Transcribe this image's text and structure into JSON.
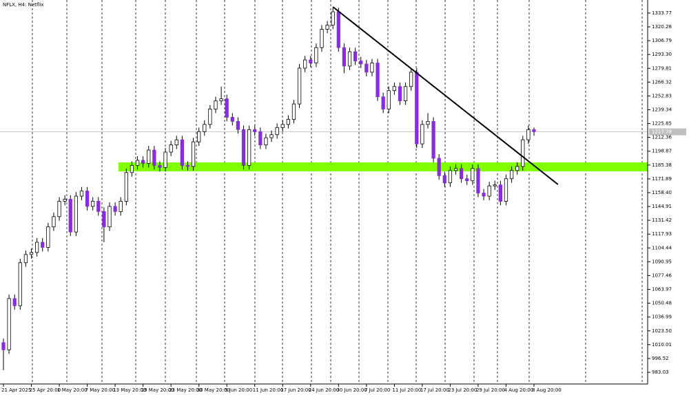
{
  "chart_data": {
    "type": "candlestick",
    "title": "NFLX, H4: Netflix",
    "categories": [
      "21 Apr 2025",
      null,
      null,
      null,
      null,
      "25 Apr 20:00",
      null,
      null,
      null,
      null,
      "1 May 20:00",
      null,
      null,
      null,
      null,
      "7 May 20:00",
      null,
      null,
      null,
      null,
      "13 May 20:00",
      null,
      null,
      null,
      null,
      "19 May 20:00",
      null,
      null,
      null,
      null,
      "23 May 20:00",
      null,
      null,
      null,
      null,
      "30 May 20:00",
      null,
      null,
      null,
      null,
      "5 Jun 20:00",
      null,
      null,
      null,
      null,
      "11 Jun 20:00",
      null,
      null,
      null,
      null,
      "17 Jun 20:00",
      null,
      null,
      null,
      null,
      "24 Jun 20:00",
      null,
      null,
      null,
      null,
      "30 Jun 20:00",
      null,
      null,
      null,
      null,
      "7 Jul 20:00",
      null,
      null,
      null,
      null,
      "11 Jul 20:00",
      null,
      null,
      null,
      null,
      "17 Jul 20:00",
      null,
      null,
      null,
      null,
      "23 Jul 20:00",
      null,
      null,
      null,
      null,
      "29 Jul 20:00",
      null,
      null,
      null,
      null,
      "4 Aug 20:00",
      null,
      null,
      null,
      null,
      "8 Aug 20:00"
    ],
    "open": [
      1012,
      1005,
      1055,
      1048,
      1090,
      1098,
      1100,
      1110,
      1105,
      1125,
      1135,
      1150,
      1152,
      1120,
      1155,
      1160,
      1145,
      1150,
      1140,
      1125,
      1145,
      1140,
      1150,
      1178,
      1185,
      1190,
      1187,
      1200,
      1185,
      1183,
      1198,
      1205,
      1210,
      1185,
      1184,
      1208,
      1218,
      1225,
      1240,
      1248,
      1250,
      1232,
      1228,
      1220,
      1185,
      1220,
      1218,
      1205,
      1212,
      1215,
      1222,
      1225,
      1230,
      1245,
      1280,
      1288,
      1285,
      1300,
      1318,
      1322,
      1335,
      1300,
      1282,
      1296,
      1287,
      1284,
      1276,
      1285,
      1252,
      1240,
      1258,
      1262,
      1248,
      1262,
      1276,
      1206,
      1225,
      1228,
      1192,
      1175,
      1168,
      1180,
      1182,
      1172,
      1170,
      1182,
      1158,
      1155,
      1165,
      1166,
      1150,
      1172,
      1180,
      1184,
      1210,
      1220
    ],
    "close": [
      1005,
      1055,
      1048,
      1090,
      1098,
      1100,
      1110,
      1105,
      1125,
      1135,
      1150,
      1152,
      1120,
      1155,
      1160,
      1145,
      1150,
      1140,
      1125,
      1145,
      1140,
      1150,
      1178,
      1185,
      1190,
      1187,
      1200,
      1185,
      1183,
      1198,
      1205,
      1210,
      1185,
      1184,
      1208,
      1218,
      1225,
      1240,
      1248,
      1250,
      1232,
      1228,
      1220,
      1185,
      1220,
      1218,
      1205,
      1212,
      1215,
      1222,
      1225,
      1230,
      1245,
      1280,
      1288,
      1285,
      1300,
      1318,
      1322,
      1335,
      1300,
      1282,
      1296,
      1287,
      1284,
      1276,
      1285,
      1252,
      1240,
      1258,
      1262,
      1248,
      1262,
      1276,
      1206,
      1225,
      1228,
      1192,
      1175,
      1168,
      1180,
      1182,
      1172,
      1170,
      1182,
      1158,
      1155,
      1165,
      1166,
      1150,
      1172,
      1180,
      1184,
      1210,
      1220,
      1218
    ],
    "high": [
      1016,
      1059,
      1059,
      1094,
      1102,
      1104,
      1114,
      1114,
      1129,
      1139,
      1154,
      1156,
      1156,
      1159,
      1164,
      1164,
      1154,
      1154,
      1144,
      1149,
      1149,
      1154,
      1182,
      1189,
      1194,
      1194,
      1204,
      1204,
      1189,
      1202,
      1209,
      1214,
      1214,
      1189,
      1212,
      1222,
      1229,
      1244,
      1252,
      1262,
      1254,
      1236,
      1232,
      1224,
      1224,
      1224,
      1222,
      1216,
      1219,
      1226,
      1229,
      1234,
      1249,
      1284,
      1292,
      1292,
      1304,
      1322,
      1326,
      1339,
      1339,
      1304,
      1300,
      1300,
      1291,
      1288,
      1289,
      1289,
      1256,
      1262,
      1266,
      1266,
      1266,
      1280,
      1280,
      1229,
      1236,
      1232,
      1196,
      1179,
      1184,
      1186,
      1186,
      1176,
      1186,
      1186,
      1162,
      1169,
      1170,
      1170,
      1176,
      1184,
      1188,
      1214,
      1224,
      1222
    ],
    "low": [
      985,
      1001,
      1044,
      1044,
      1086,
      1094,
      1096,
      1101,
      1101,
      1121,
      1131,
      1146,
      1116,
      1116,
      1151,
      1141,
      1141,
      1136,
      1110,
      1121,
      1136,
      1136,
      1146,
      1174,
      1181,
      1183,
      1183,
      1181,
      1179,
      1179,
      1194,
      1201,
      1181,
      1180,
      1180,
      1204,
      1214,
      1221,
      1236,
      1244,
      1228,
      1224,
      1216,
      1181,
      1181,
      1214,
      1201,
      1201,
      1208,
      1211,
      1218,
      1221,
      1226,
      1241,
      1276,
      1281,
      1281,
      1296,
      1314,
      1318,
      1296,
      1275,
      1278,
      1283,
      1280,
      1272,
      1272,
      1248,
      1236,
      1236,
      1254,
      1244,
      1244,
      1258,
      1202,
      1202,
      1221,
      1188,
      1171,
      1164,
      1164,
      1176,
      1168,
      1166,
      1166,
      1154,
      1151,
      1151,
      1161,
      1146,
      1146,
      1168,
      1176,
      1180,
      1206,
      1214
    ],
    "up_color": "#ffffff",
    "down_color": "#8a2be2",
    "wick_color": "#000000",
    "ylim": [
      971.6,
      1346.5
    ],
    "yticks": [
      983.03,
      996.52,
      1010.01,
      {
        "value": 1023.5,
        "label": "1023.50"
      },
      1036.99,
      1050.48,
      1063.97,
      1077.46,
      1090.95,
      1104.44,
      1117.93,
      1131.42,
      1144.91,
      {
        "value": 1158.4,
        "label": "1158.40"
      },
      1171.89,
      1185.38,
      1198.87,
      1212.36,
      1225.85,
      1239.34,
      1252.83,
      1266.32,
      1279.81,
      {
        "value": 1293.3,
        "label": "1293.30"
      },
      1306.79,
      1320.28,
      1333.77
    ],
    "current_price": 1217.78,
    "zone": {
      "from": 1179.2,
      "to": 1187.9,
      "x_start": 20.6,
      "color": "#80ff00"
    },
    "trendline": {
      "x": [
        59,
        99.3
      ],
      "y": [
        1339.8,
        1166.4
      ],
      "color": "#000000"
    }
  }
}
